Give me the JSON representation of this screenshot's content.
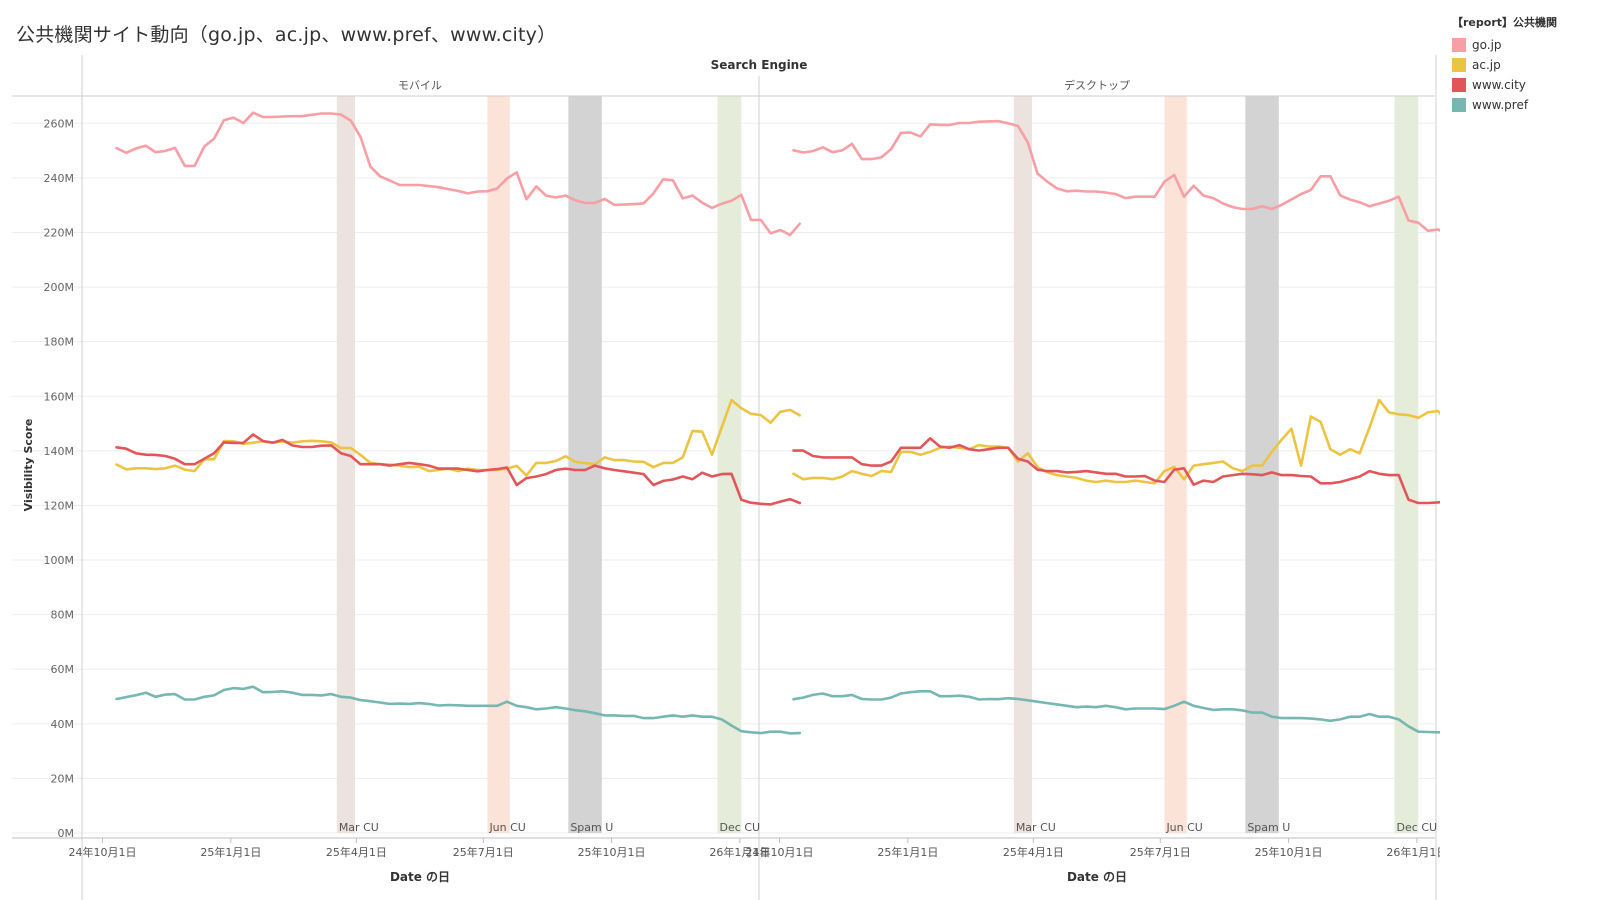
{
  "title": "公共機関サイト動向（go.jp、ac.jp、www.pref、www.city）",
  "legend": {
    "title": "【report】公共機関",
    "items": [
      {
        "label": "go.jp",
        "color": "#f89ea5"
      },
      {
        "label": "ac.jp",
        "color": "#ecc443"
      },
      {
        "label": "www.city",
        "color": "#e15759"
      },
      {
        "label": "www.pref",
        "color": "#76b7b2"
      }
    ]
  },
  "chart_data": {
    "type": "line",
    "title": "公共機関サイト動向（go.jp、ac.jp、www.pref、www.city）",
    "facet_title": "Search Engine",
    "xlabel": "Date の日",
    "ylabel": "Visibility Score",
    "ylim": [
      0,
      270
    ],
    "y_unit": "M",
    "y_ticks": [
      0,
      20,
      40,
      60,
      80,
      100,
      120,
      140,
      160,
      180,
      200,
      220,
      240,
      260
    ],
    "y_tick_labels": [
      "0M",
      "20M",
      "40M",
      "60M",
      "80M",
      "100M",
      "120M",
      "140M",
      "160M",
      "180M",
      "200M",
      "220M",
      "240M",
      "260M"
    ],
    "x_range_days": [
      -14,
      470
    ],
    "x_ticks": [
      {
        "day": 0,
        "label": "24年10月1日"
      },
      {
        "day": 92,
        "label": "25年1月1日"
      },
      {
        "day": 182,
        "label": "25年4月1日"
      },
      {
        "day": 273,
        "label": "25年7月1日"
      },
      {
        "day": 365,
        "label": "25年10月1日"
      },
      {
        "day": 457,
        "label": "26年1月1日"
      }
    ],
    "bands": [
      {
        "label": "Mar CU",
        "start": 168,
        "end": 181,
        "color": "#ece2de"
      },
      {
        "label": "Jun CU",
        "start": 276,
        "end": 292,
        "color": "#fbe3d8"
      },
      {
        "label": "Spam U",
        "start": 334,
        "end": 358,
        "color": "#d3d3d3"
      },
      {
        "label": "Dec CU",
        "start": 441,
        "end": 458,
        "color": "#e5ecd9"
      }
    ],
    "x_start_day": 10,
    "x_step_days": 7,
    "panels": [
      {
        "name": "モバイル",
        "series": [
          {
            "name": "go.jp",
            "color": "#f89ea5",
            "values": [
              250.9,
              249.2,
              250.8,
              251.8,
              249.4,
              249.9,
              251.0,
              244.4,
              244.4,
              251.5,
              254.4,
              261.1,
              262.1,
              260.1,
              263.9,
              262.3,
              262.3,
              262.5,
              262.6,
              262.6,
              263.1,
              263.6,
              263.6,
              263.2,
              261.0,
              255.0,
              244.2,
              240.6,
              239.0,
              237.4,
              237.4,
              237.4,
              237.0,
              236.6,
              235.9,
              235.2,
              234.3,
              235.0,
              235.1,
              236.1,
              239.8,
              242.0,
              232.2,
              236.9,
              233.5,
              232.8,
              233.5,
              231.8,
              230.8,
              230.8,
              232.3,
              230.1,
              230.2,
              230.4,
              230.7,
              234.3,
              239.5,
              239.1,
              232.5,
              233.5,
              230.9,
              229.0,
              230.5,
              231.6,
              233.8,
              224.6,
              224.6,
              219.7,
              220.9,
              219.1,
              223.2
            ]
          },
          {
            "name": "ac.jp",
            "color": "#ecc443",
            "values": [
              135.0,
              133.2,
              133.6,
              133.6,
              133.3,
              133.6,
              134.6,
              133.1,
              132.6,
              136.9,
              136.9,
              143.6,
              143.5,
              142.6,
              143.0,
              143.5,
              143.0,
              143.5,
              143.0,
              143.5,
              143.7,
              143.5,
              143.1,
              141.0,
              141.0,
              138.5,
              135.6,
              135.1,
              135.0,
              134.6,
              134.0,
              134.2,
              132.6,
              133.0,
              133.5,
              132.6,
              133.5,
              133.0,
              133.0,
              133.0,
              133.5,
              134.5,
              131.0,
              135.6,
              135.6,
              136.3,
              138.0,
              136.0,
              135.5,
              135.1,
              137.6,
              136.6,
              136.6,
              136.1,
              136.0,
              134.0,
              135.6,
              135.6,
              137.6,
              147.3,
              147.0,
              138.6,
              148.6,
              158.6,
              155.6,
              153.6,
              153.1,
              150.3,
              154.3,
              155.0,
              153.0
            ]
          },
          {
            "name": "www.city",
            "color": "#e15759",
            "values": [
              141.3,
              140.8,
              139.1,
              138.6,
              138.5,
              138.1,
              137.1,
              135.1,
              135.1,
              137.1,
              139.1,
              143.1,
              142.9,
              142.9,
              146.0,
              143.6,
              143.0,
              144.0,
              142.0,
              141.4,
              141.4,
              141.9,
              142.0,
              139.1,
              138.1,
              135.1,
              135.1,
              135.1,
              134.6,
              135.1,
              135.6,
              135.1,
              134.6,
              133.5,
              133.5,
              133.5,
              133.0,
              132.5,
              133.0,
              133.3,
              133.9,
              127.5,
              130.0,
              130.6,
              131.5,
              133.0,
              133.5,
              133.0,
              133.0,
              134.6,
              133.6,
              133.0,
              132.5,
              132.0,
              131.5,
              127.5,
              129.0,
              129.5,
              130.6,
              129.6,
              132.0,
              130.6,
              131.5,
              131.6,
              122.1,
              121.0,
              120.6,
              120.4,
              121.4,
              122.3,
              120.9
            ]
          },
          {
            "name": "www.pref",
            "color": "#76b7b2",
            "values": [
              49.1,
              49.8,
              50.5,
              51.4,
              49.9,
              50.7,
              50.9,
              48.9,
              48.9,
              49.9,
              50.4,
              52.4,
              53.1,
              52.8,
              53.6,
              51.6,
              51.7,
              51.9,
              51.4,
              50.6,
              50.6,
              50.4,
              50.9,
              49.9,
              49.6,
              48.7,
              48.3,
              47.8,
              47.3,
              47.4,
              47.3,
              47.6,
              47.3,
              46.7,
              46.9,
              46.8,
              46.6,
              46.6,
              46.6,
              46.6,
              48.1,
              46.6,
              46.1,
              45.3,
              45.6,
              46.1,
              45.6,
              45.0,
              44.6,
              43.9,
              43.1,
              43.1,
              42.9,
              42.9,
              42.1,
              42.1,
              42.6,
              43.1,
              42.6,
              43.1,
              42.6,
              42.6,
              41.6,
              39.4,
              37.3,
              36.9,
              36.6,
              37.1,
              37.1,
              36.5,
              36.6
            ]
          }
        ]
      },
      {
        "name": "デスクトップ",
        "series": [
          {
            "name": "go.jp",
            "color": "#f89ea5",
            "values": [
              250.1,
              249.3,
              249.8,
              251.2,
              249.4,
              250.1,
              252.5,
              246.9,
              246.9,
              247.5,
              250.5,
              256.5,
              256.6,
              255.2,
              259.6,
              259.4,
              259.4,
              260.1,
              260.1,
              260.6,
              260.7,
              260.8,
              260.0,
              259.0,
              253.0,
              241.6,
              238.6,
              236.1,
              235.1,
              235.3,
              235.0,
              235.0,
              234.6,
              234.1,
              232.6,
              233.1,
              233.1,
              233.1,
              238.6,
              241.1,
              233.1,
              237.1,
              233.5,
              232.6,
              230.6,
              229.3,
              228.6,
              228.6,
              229.6,
              228.6,
              230.1,
              232.1,
              234.1,
              235.6,
              240.6,
              240.6,
              233.6,
              232.1,
              231.1,
              229.6,
              230.6,
              231.6,
              233.1,
              224.4,
              223.6,
              220.6,
              221.1,
              219.6,
              220.5
            ]
          },
          {
            "name": "ac.jp",
            "color": "#ecc443",
            "values": [
              131.6,
              129.6,
              130.1,
              130.1,
              129.6,
              130.6,
              132.6,
              131.6,
              130.8,
              132.6,
              132.3,
              139.6,
              139.6,
              138.6,
              139.6,
              141.1,
              141.6,
              141.1,
              140.6,
              142.1,
              141.6,
              141.6,
              141.1,
              136.1,
              139.1,
              134.1,
              132.1,
              131.1,
              130.6,
              130.1,
              129.1,
              128.6,
              129.1,
              128.6,
              128.6,
              129.1,
              128.6,
              128.1,
              132.6,
              134.1,
              129.6,
              134.6,
              135.1,
              135.6,
              136.1,
              133.6,
              132.6,
              134.6,
              134.6,
              139.6,
              144.1,
              148.1,
              134.6,
              152.6,
              150.6,
              140.6,
              138.6,
              140.6,
              139.1,
              148.6,
              158.6,
              154.1,
              153.4,
              153.1,
              152.1,
              154.1,
              154.6,
              151.1
            ]
          },
          {
            "name": "www.city",
            "color": "#e15759",
            "values": [
              140.1,
              140.1,
              138.1,
              137.6,
              137.6,
              137.6,
              137.6,
              135.1,
              134.6,
              134.6,
              136.1,
              141.1,
              141.1,
              141.1,
              144.6,
              141.6,
              141.1,
              142.1,
              140.6,
              140.1,
              140.6,
              141.1,
              141.1,
              137.1,
              136.1,
              133.1,
              132.6,
              132.6,
              132.1,
              132.3,
              132.6,
              132.1,
              131.6,
              131.6,
              130.6,
              130.6,
              130.8,
              129.1,
              128.6,
              133.1,
              133.6,
              127.6,
              129.1,
              128.6,
              130.6,
              131.1,
              131.6,
              131.4,
              131.1,
              132.1,
              131.1,
              131.1,
              130.8,
              130.6,
              128.1,
              128.1,
              128.6,
              129.6,
              130.6,
              132.6,
              131.6,
              131.1,
              131.1,
              122.1,
              120.9,
              120.9,
              121.1,
              121.4,
              122.6,
              120.1
            ]
          },
          {
            "name": "www.pref",
            "color": "#76b7b2",
            "values": [
              49.0,
              49.6,
              50.6,
              51.1,
              50.1,
              50.1,
              50.6,
              49.1,
              48.9,
              48.9,
              49.6,
              51.1,
              51.6,
              51.9,
              51.9,
              50.1,
              50.1,
              50.3,
              49.9,
              48.9,
              49.1,
              49.0,
              49.4,
              49.1,
              48.6,
              48.1,
              47.6,
              47.1,
              46.6,
              46.1,
              46.3,
              46.1,
              46.6,
              46.1,
              45.3,
              45.6,
              45.6,
              45.6,
              45.4,
              46.6,
              48.1,
              46.6,
              45.8,
              45.1,
              45.3,
              45.3,
              44.9,
              44.1,
              44.1,
              42.6,
              42.1,
              42.1,
              42.1,
              41.9,
              41.6,
              41.1,
              41.6,
              42.6,
              42.6,
              43.6,
              42.6,
              42.6,
              41.6,
              39.1,
              37.1,
              37.0,
              36.9,
              37.1,
              37.1,
              36.5
            ]
          }
        ]
      }
    ]
  }
}
